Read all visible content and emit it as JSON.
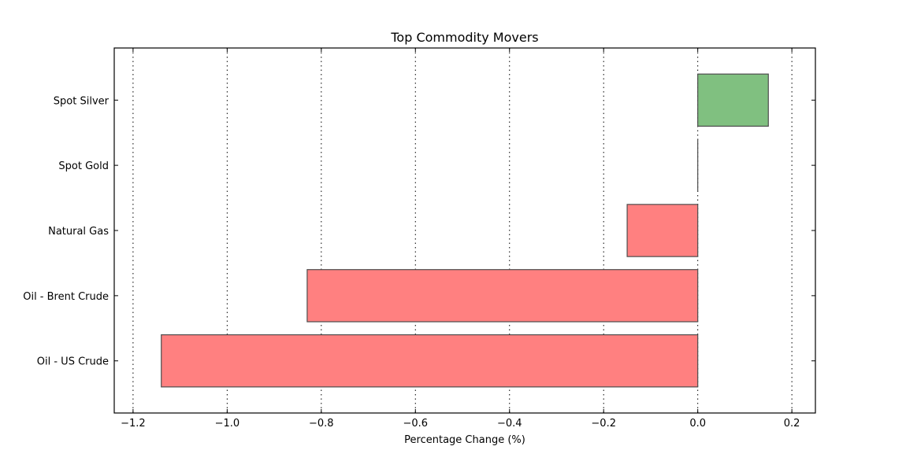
{
  "chart_data": {
    "type": "bar",
    "orientation": "horizontal",
    "title": "Top Commodity Movers",
    "xlabel": "Percentage Change (%)",
    "ylabel": "",
    "xlim": [
      -1.24,
      0.25
    ],
    "grid": true,
    "x_ticks": [
      -1.2,
      -1.0,
      -0.8,
      -0.6,
      -0.4,
      -0.2,
      0.0,
      0.2
    ],
    "x_tick_labels": [
      "−1.2",
      "−1.0",
      "−0.8",
      "−0.6",
      "−0.4",
      "−0.2",
      "0.0",
      "0.2"
    ],
    "categories": [
      "Oil - US Crude",
      "Oil - Brent Crude",
      "Natural Gas",
      "Spot Gold",
      "Spot Silver"
    ],
    "values": [
      -1.14,
      -0.83,
      -0.15,
      0.0,
      0.15
    ],
    "colors": {
      "positive": "#80c080",
      "negative": "#ff8080",
      "edge": "#4d4d4d"
    }
  }
}
